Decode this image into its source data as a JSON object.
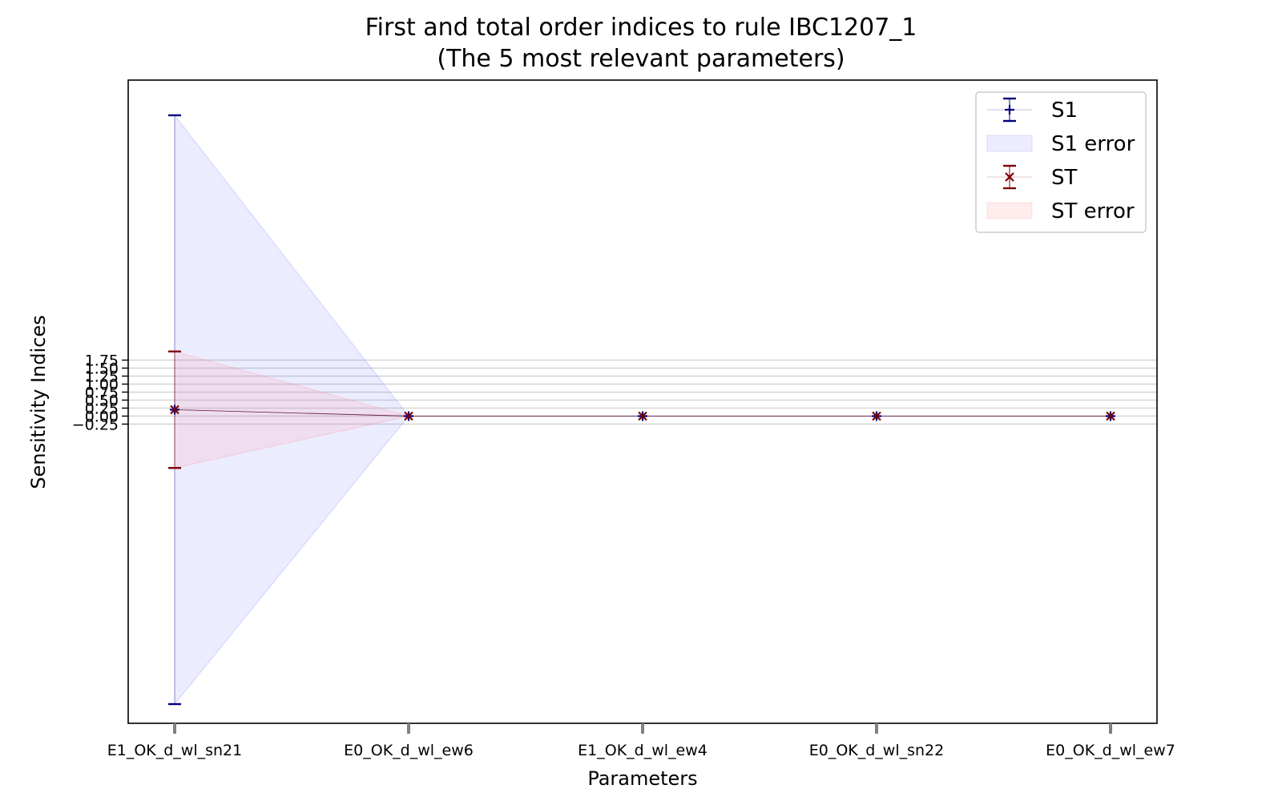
{
  "chart_data": {
    "type": "line",
    "title": "First and total order indices to rule IBC1207_1",
    "subtitle": "(The 5 most relevant parameters)",
    "xlabel": "Parameters",
    "ylabel": "Sensitivity Indices",
    "categories": [
      "E1_OK_d_wl_sn21",
      "E0_OK_d_wl_ew6",
      "E1_OK_d_wl_ew4",
      "E0_OK_d_wl_sn22",
      "E0_OK_d_wl_ew7"
    ],
    "yticks": [
      -0.25,
      0.0,
      0.25,
      0.5,
      0.75,
      1.0,
      1.25,
      1.5,
      1.75
    ],
    "ytick_labels": [
      "−0.25",
      "0.00",
      "0.25",
      "0.50",
      "0.75",
      "1.00",
      "1.25",
      "1.50",
      "1.75"
    ],
    "ylim": [
      -9.6,
      10.5
    ],
    "grid": "horizontal",
    "legend_position": "top-right",
    "series": [
      {
        "name": "S1",
        "values": [
          0.2,
          0.0,
          0.0,
          0.0,
          0.0
        ],
        "errors": [
          9.2,
          0.0,
          0.0,
          0.0,
          0.0
        ],
        "color": "#00007f",
        "marker": "+"
      },
      {
        "name": "ST",
        "values": [
          0.2,
          0.0,
          0.0,
          0.0,
          0.0
        ],
        "errors": [
          1.82,
          0.0,
          0.0,
          0.0,
          0.0
        ],
        "color": "#7f0000",
        "marker": "x"
      }
    ],
    "legend": [
      {
        "label": "S1",
        "kind": "errorbar",
        "color": "#00007f",
        "marker": "+"
      },
      {
        "label": "S1 error",
        "kind": "fill",
        "color": "#6a6aff"
      },
      {
        "label": "ST",
        "kind": "errorbar",
        "color": "#7f0000",
        "marker": "x"
      },
      {
        "label": "ST error",
        "kind": "fill",
        "color": "#ff8080"
      }
    ]
  }
}
